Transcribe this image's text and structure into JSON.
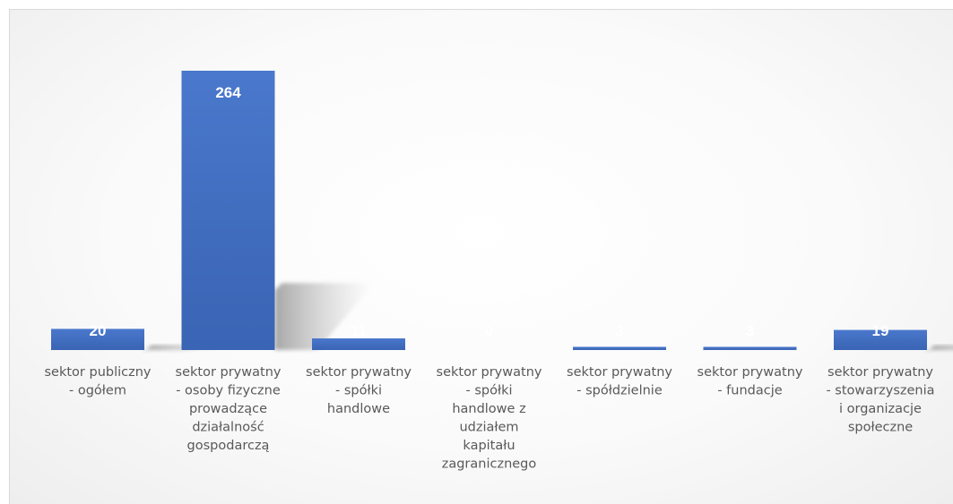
{
  "chart_data": {
    "type": "bar",
    "categories": [
      [
        "sektor publiczny",
        "- ogółem"
      ],
      [
        "sektor prywatny",
        "- osoby fizyczne",
        "prowadzące",
        "działalność",
        "gospodarczą"
      ],
      [
        "sektor prywatny",
        "- spółki",
        "handlowe"
      ],
      [
        "sektor prywatny",
        "- spółki",
        "handlowe z",
        "udziałem",
        "kapitału",
        "zagranicznego"
      ],
      [
        "sektor prywatny",
        "- spółdzielnie"
      ],
      [
        "sektor prywatny",
        "- fundacje"
      ],
      [
        "sektor prywatny",
        "- stowarzyszenia",
        "i organizacje",
        "społeczne"
      ]
    ],
    "values": [
      20,
      264,
      11,
      0,
      3,
      3,
      19
    ],
    "data_labels": [
      "20",
      "264",
      "11",
      "0",
      "3",
      "3",
      "19"
    ],
    "ylim": [
      0,
      264
    ],
    "grid": false,
    "legend": "none",
    "colors": {
      "bar": "#4472c4",
      "bar_top": "#4a78cc",
      "bar_bottom": "#3a64b4",
      "label_text": "#595959",
      "data_label": "#ffffff"
    }
  }
}
